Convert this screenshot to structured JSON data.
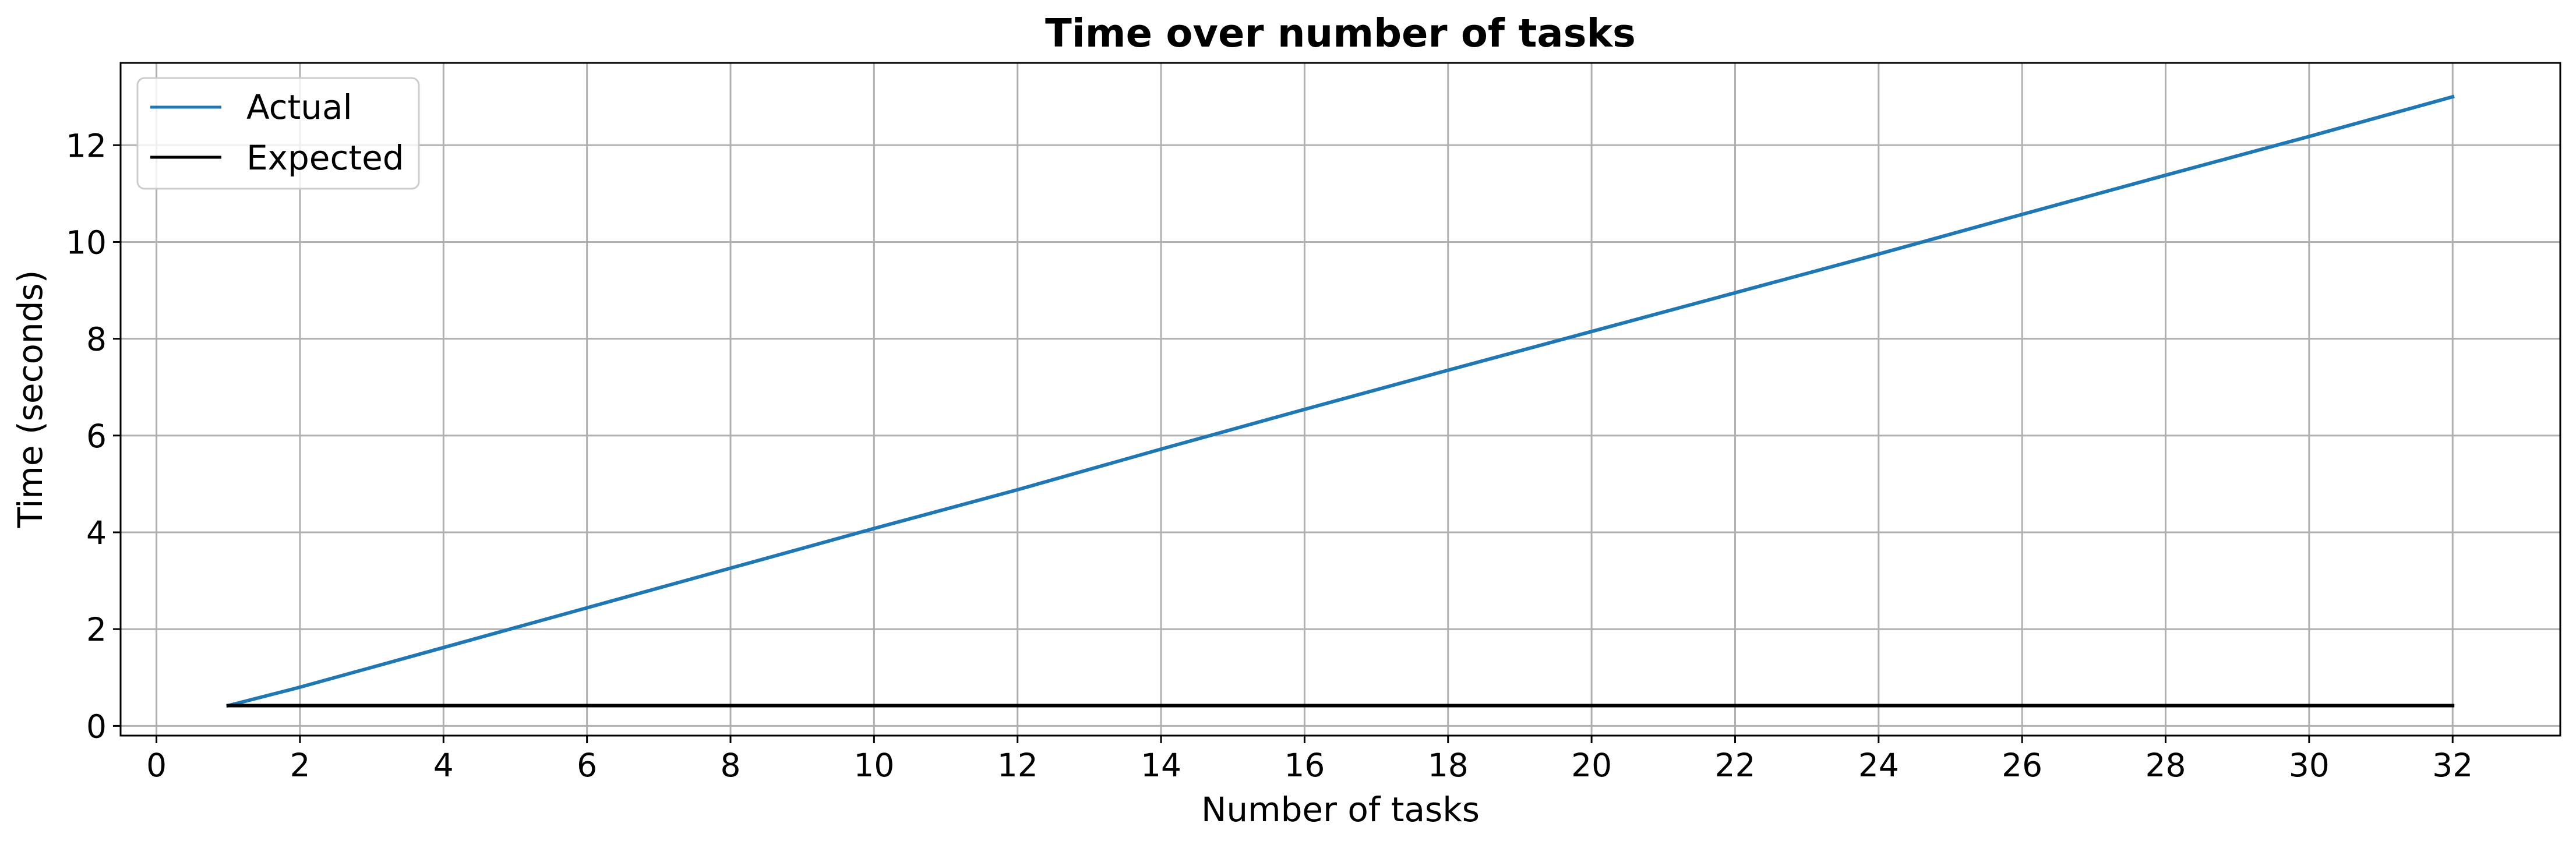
{
  "chart_data": {
    "type": "line",
    "title": "Time over number of tasks",
    "xlabel": "Number of tasks",
    "ylabel": "Time (seconds)",
    "xlim": [
      -0.5,
      33.5
    ],
    "ylim": [
      -0.2,
      13.7
    ],
    "xticks": [
      0,
      2,
      4,
      6,
      8,
      10,
      12,
      14,
      16,
      18,
      20,
      22,
      24,
      26,
      28,
      30,
      32
    ],
    "yticks": [
      0,
      2,
      4,
      6,
      8,
      10,
      12
    ],
    "grid": true,
    "legend_position": "top-left",
    "series": [
      {
        "name": "Actual",
        "color": "#1f77b4",
        "x": [
          1,
          2,
          4,
          6,
          8,
          10,
          12,
          14,
          16,
          18,
          20,
          22,
          24,
          26,
          28,
          30,
          32
        ],
        "y": [
          0.42,
          0.8,
          1.62,
          2.44,
          3.26,
          4.08,
          4.88,
          5.72,
          6.54,
          7.35,
          8.15,
          8.95,
          9.75,
          10.57,
          11.38,
          12.18,
          13.0
        ]
      },
      {
        "name": "Expected",
        "color": "#000000",
        "x": [
          1,
          32
        ],
        "y": [
          0.42,
          0.42
        ]
      }
    ]
  }
}
